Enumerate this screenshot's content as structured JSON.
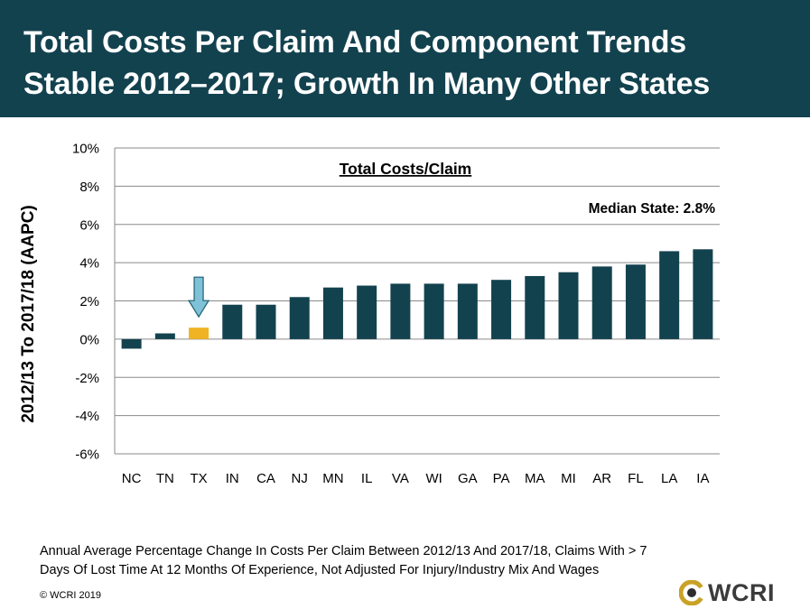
{
  "header": {
    "title_line1": "Total Costs Per Claim And Component Trends",
    "title_line2": "Stable 2012–2017; Growth In Many Other States"
  },
  "chart_data": {
    "type": "bar",
    "title": "Total Costs/Claim",
    "ylabel": "2012/13 To 2017/18 (AAPC)",
    "xlabel": "",
    "categories": [
      "NC",
      "TN",
      "TX",
      "IN",
      "CA",
      "NJ",
      "MN",
      "IL",
      "VA",
      "WI",
      "GA",
      "PA",
      "MA",
      "MI",
      "AR",
      "FL",
      "LA",
      "IA"
    ],
    "values": [
      -0.5,
      0.3,
      0.6,
      1.8,
      1.8,
      2.2,
      2.7,
      2.8,
      2.9,
      2.9,
      2.9,
      3.1,
      3.3,
      3.5,
      3.8,
      3.9,
      4.6,
      4.7
    ],
    "ylim": [
      -6,
      10
    ],
    "yticks": [
      -6,
      -4,
      -2,
      0,
      2,
      4,
      6,
      8,
      10
    ],
    "ytick_labels": [
      "-6%",
      "-4%",
      "-2%",
      "0%",
      "2%",
      "4%",
      "6%",
      "8%",
      "10%"
    ],
    "grid": true,
    "highlight_category": "TX",
    "annotation": "Median State: 2.8%",
    "colors": {
      "bar": "#13424f",
      "highlight": "#f0b323",
      "arrow_fill": "#7fc1d6",
      "arrow_stroke": "#1f5e72",
      "grid": "#8a8a8a"
    }
  },
  "footnote": {
    "line1": "Annual Average Percentage Change In Costs Per Claim Between 2012/13 And 2017/18, Claims With > 7",
    "line2": "Days Of Lost Time At 12 Months Of Experience, Not Adjusted For Injury/Industry Mix And Wages"
  },
  "copyright": "© WCRI 2019",
  "logo": {
    "text": "WCRI",
    "gold": "#c9a227",
    "dark": "#2d2d2d"
  }
}
